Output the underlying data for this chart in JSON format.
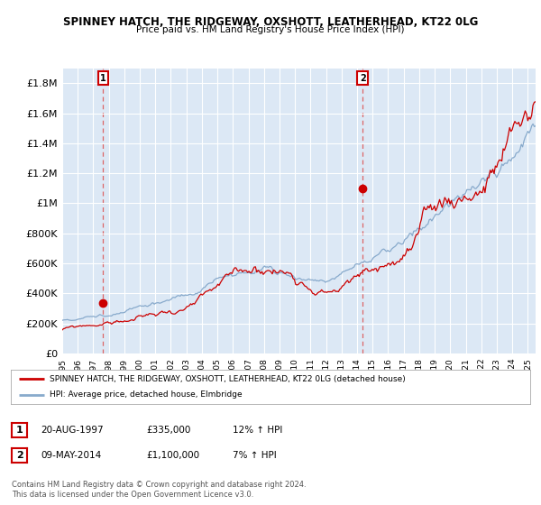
{
  "title": "SPINNEY HATCH, THE RIDGEWAY, OXSHOTT, LEATHERHEAD, KT22 0LG",
  "subtitle": "Price paid vs. HM Land Registry's House Price Index (HPI)",
  "xlim_start": 1995.0,
  "xlim_end": 2025.5,
  "ylim": [
    0,
    1900000
  ],
  "yticks": [
    0,
    200000,
    400000,
    600000,
    800000,
    1000000,
    1200000,
    1400000,
    1600000,
    1800000
  ],
  "ytick_labels": [
    "£0",
    "£200K",
    "£400K",
    "£600K",
    "£800K",
    "£1M",
    "£1.2M",
    "£1.4M",
    "£1.6M",
    "£1.8M"
  ],
  "bg_color": "#dce8f5",
  "red_color": "#cc0000",
  "blue_color": "#88aacc",
  "marker1_x": 1997.64,
  "marker1_y": 335000,
  "marker2_x": 2014.36,
  "marker2_y": 1100000,
  "legend_red_label": "SPINNEY HATCH, THE RIDGEWAY, OXSHOTT, LEATHERHEAD, KT22 0LG (detached house)",
  "legend_blue_label": "HPI: Average price, detached house, Elmbridge",
  "table_row1": [
    "1",
    "20-AUG-1997",
    "£335,000",
    "12% ↑ HPI"
  ],
  "table_row2": [
    "2",
    "09-MAY-2014",
    "£1,100,000",
    "7% ↑ HPI"
  ],
  "footer": "Contains HM Land Registry data © Crown copyright and database right 2024.\nThis data is licensed under the Open Government Licence v3.0.",
  "xticks": [
    1995,
    1996,
    1997,
    1998,
    1999,
    2000,
    2001,
    2002,
    2003,
    2004,
    2005,
    2006,
    2007,
    2008,
    2009,
    2010,
    2011,
    2012,
    2013,
    2014,
    2015,
    2016,
    2017,
    2018,
    2019,
    2020,
    2021,
    2022,
    2023,
    2024,
    2025
  ]
}
